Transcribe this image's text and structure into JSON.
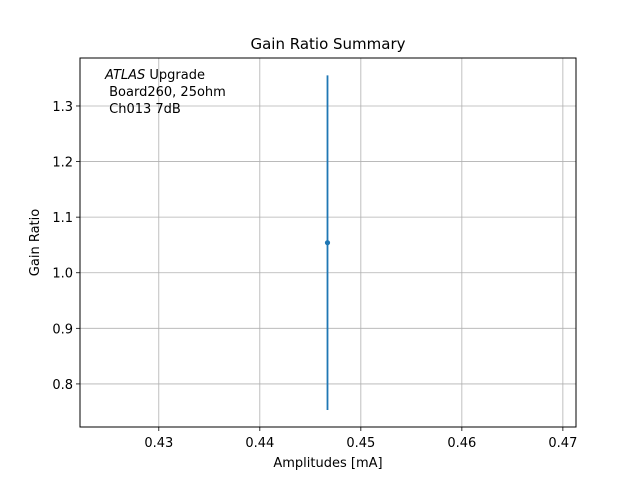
{
  "chart_data": {
    "type": "scatter",
    "title": "Gain Ratio Summary",
    "xlabel": "Amplitudes [mA]",
    "ylabel": "Gain Ratio",
    "xlim": [
      0.4222,
      0.4713
    ],
    "ylim": [
      0.7225,
      1.3863
    ],
    "xticks": [
      0.43,
      0.44,
      0.45,
      0.46,
      0.47
    ],
    "xtick_labels": [
      "0.43",
      "0.44",
      "0.45",
      "0.46",
      "0.47"
    ],
    "yticks": [
      0.8,
      0.9,
      1.0,
      1.1,
      1.2,
      1.3
    ],
    "ytick_labels": [
      "0.8",
      "0.9",
      "1.0",
      "1.1",
      "1.2",
      "1.3"
    ],
    "grid": true,
    "series": [
      {
        "color": "#1f77b4",
        "points": [
          {
            "x": 0.4467,
            "y": 1.054,
            "yerr": 0.301
          }
        ]
      }
    ],
    "annotation": {
      "lines": [
        {
          "italic": "ATLAS",
          "text": " Upgrade"
        },
        {
          "italic": "",
          "text": " Board260, 25ohm"
        },
        {
          "italic": "",
          "text": " Ch013 7dB"
        }
      ]
    }
  }
}
